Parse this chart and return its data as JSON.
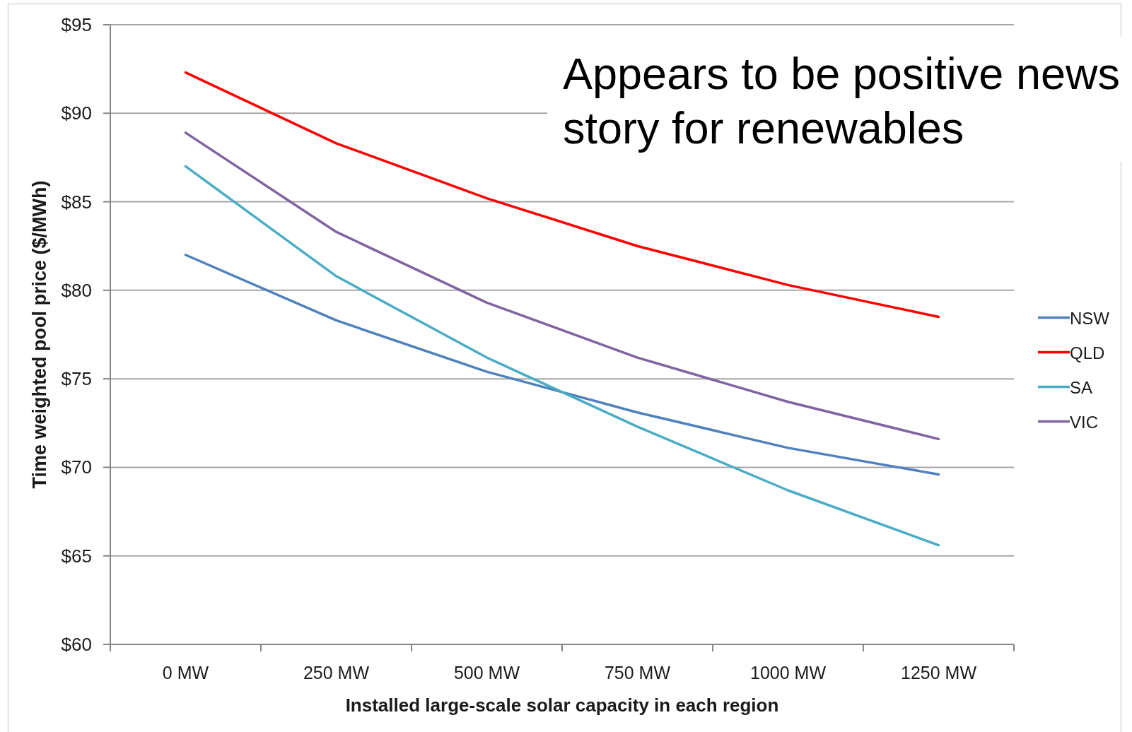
{
  "chart_data": {
    "type": "line",
    "categories": [
      "0 MW",
      "250 MW",
      "500 MW",
      "750 MW",
      "1000 MW",
      "1250 MW"
    ],
    "series": [
      {
        "name": "NSW",
        "color": "#4f81bd",
        "values": [
          82.0,
          78.3,
          75.4,
          73.1,
          71.1,
          69.6
        ]
      },
      {
        "name": "QLD",
        "color": "#ff0000",
        "values": [
          92.3,
          88.3,
          85.2,
          82.5,
          80.3,
          78.5
        ]
      },
      {
        "name": "SA",
        "color": "#4bacc6",
        "values": [
          87.0,
          80.8,
          76.2,
          72.3,
          68.7,
          65.6
        ]
      },
      {
        "name": "VIC",
        "color": "#8064a2",
        "values": [
          88.9,
          83.3,
          79.3,
          76.2,
          73.7,
          71.6
        ]
      }
    ],
    "xlabel": "Installed large-scale solar capacity in each region",
    "ylabel": "Time weighted pool price ($/MWh)",
    "ylim": [
      60,
      95
    ],
    "yticks": [
      {
        "value": 60,
        "label": "$60"
      },
      {
        "value": 65,
        "label": "$65"
      },
      {
        "value": 70,
        "label": "$70"
      },
      {
        "value": 75,
        "label": "$75"
      },
      {
        "value": 80,
        "label": "$80"
      },
      {
        "value": 85,
        "label": "$85"
      },
      {
        "value": 90,
        "label": "$90"
      },
      {
        "value": 95,
        "label": "$95"
      }
    ],
    "grid": "y",
    "legend": "right",
    "annotations": [
      "Appears to be positive news story for renewables"
    ]
  }
}
